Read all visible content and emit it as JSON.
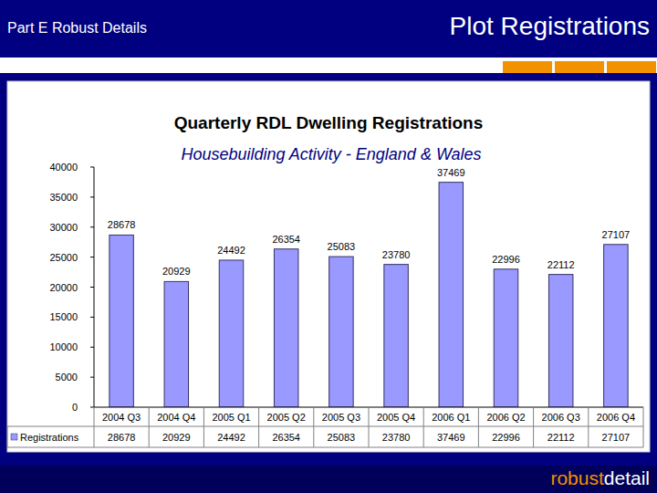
{
  "header": {
    "left": "Part E Robust Details",
    "title": "Plot Registrations"
  },
  "footer": {
    "logo_parts": [
      "robust",
      "detail"
    ]
  },
  "chart_data": {
    "type": "bar",
    "title": "Quarterly RDL Dwelling Registrations",
    "subtitle": "Housebuilding Activity - England & Wales",
    "categories": [
      "2004 Q3",
      "2004 Q4",
      "2005 Q1",
      "2005 Q2",
      "2005 Q3",
      "2005 Q4",
      "2006 Q1",
      "2006 Q2",
      "2006 Q3",
      "2006 Q4"
    ],
    "series": [
      {
        "name": "Registrations",
        "color": "#9999ff",
        "values": [
          28678,
          20929,
          24492,
          26354,
          25083,
          23780,
          37469,
          22996,
          22112,
          27107
        ]
      }
    ],
    "ylim": [
      0,
      40000
    ],
    "yticks": [
      0,
      5000,
      10000,
      15000,
      20000,
      25000,
      30000,
      35000,
      40000
    ],
    "grid": false,
    "data_labels": true
  }
}
